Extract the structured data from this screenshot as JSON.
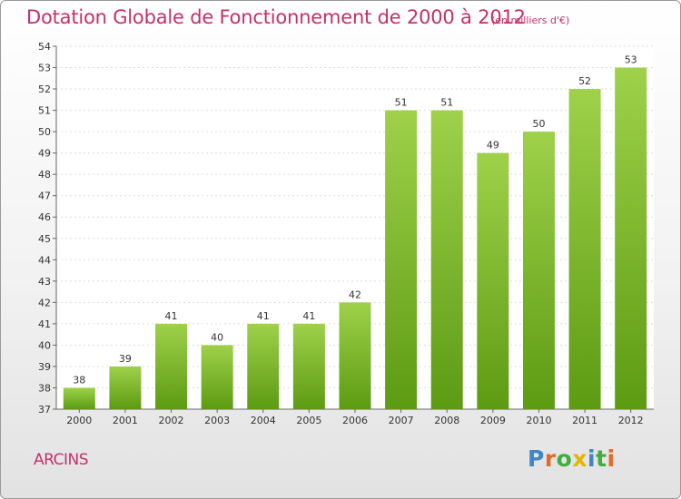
{
  "header": {
    "title": "Dotation Globale de Fonctionnement de 2000 à 2012",
    "unit": "(en milliers d'€)"
  },
  "footer": {
    "place": "ARCINS",
    "logo": "Proxiti"
  },
  "colors": {
    "title": "#c4306d",
    "bar_light": "#9fd14b",
    "bar_dark": "#5c9b12",
    "logo_letters": [
      "#3e86c6",
      "#e46a2a",
      "#3fae3f",
      "#e5b500",
      "#3e86c6",
      "#3fae3f",
      "#e46a2a"
    ]
  },
  "chart_data": {
    "type": "bar",
    "title": "Dotation Globale de Fonctionnement de 2000 à 2012",
    "subtitle": "(en milliers d'€)",
    "xlabel": "",
    "ylabel": "",
    "categories": [
      "2000",
      "2001",
      "2002",
      "2003",
      "2004",
      "2005",
      "2006",
      "2007",
      "2008",
      "2009",
      "2010",
      "2011",
      "2012"
    ],
    "values": [
      38,
      39,
      41,
      40,
      41,
      41,
      42,
      51,
      51,
      49,
      50,
      52,
      53
    ],
    "ylim": [
      37,
      54
    ],
    "yticks": [
      37,
      38,
      39,
      40,
      41,
      42,
      43,
      44,
      45,
      46,
      47,
      48,
      49,
      50,
      51,
      52,
      53,
      54
    ],
    "grid": true,
    "data_labels": true
  }
}
